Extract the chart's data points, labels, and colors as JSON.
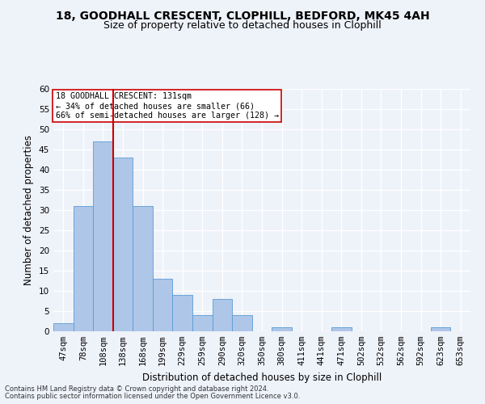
{
  "title1": "18, GOODHALL CRESCENT, CLOPHILL, BEDFORD, MK45 4AH",
  "title2": "Size of property relative to detached houses in Clophill",
  "xlabel": "Distribution of detached houses by size in Clophill",
  "ylabel": "Number of detached properties",
  "bins": [
    "47sqm",
    "78sqm",
    "108sqm",
    "138sqm",
    "168sqm",
    "199sqm",
    "229sqm",
    "259sqm",
    "290sqm",
    "320sqm",
    "350sqm",
    "380sqm",
    "411sqm",
    "441sqm",
    "471sqm",
    "502sqm",
    "532sqm",
    "562sqm",
    "592sqm",
    "623sqm",
    "653sqm"
  ],
  "values": [
    2,
    31,
    47,
    43,
    31,
    13,
    9,
    4,
    8,
    4,
    0,
    1,
    0,
    0,
    1,
    0,
    0,
    0,
    0,
    1,
    0
  ],
  "bar_color": "#aec6e8",
  "bar_edge_color": "#5b9bd5",
  "vline_x_index": 3,
  "vline_color": "#cc0000",
  "annotation_text": "18 GOODHALL CRESCENT: 131sqm\n← 34% of detached houses are smaller (66)\n66% of semi-detached houses are larger (128) →",
  "annotation_box_color": "#ffffff",
  "annotation_box_edge": "#cc0000",
  "ylim": [
    0,
    60
  ],
  "yticks": [
    0,
    5,
    10,
    15,
    20,
    25,
    30,
    35,
    40,
    45,
    50,
    55,
    60
  ],
  "footnote1": "Contains HM Land Registry data © Crown copyright and database right 2024.",
  "footnote2": "Contains public sector information licensed under the Open Government Licence v3.0.",
  "background_color": "#eef2f9",
  "grid_color": "#ffffff",
  "title1_fontsize": 10,
  "title2_fontsize": 9,
  "xlabel_fontsize": 8.5,
  "ylabel_fontsize": 8.5,
  "tick_fontsize": 7.5,
  "footnote_fontsize": 6.0
}
